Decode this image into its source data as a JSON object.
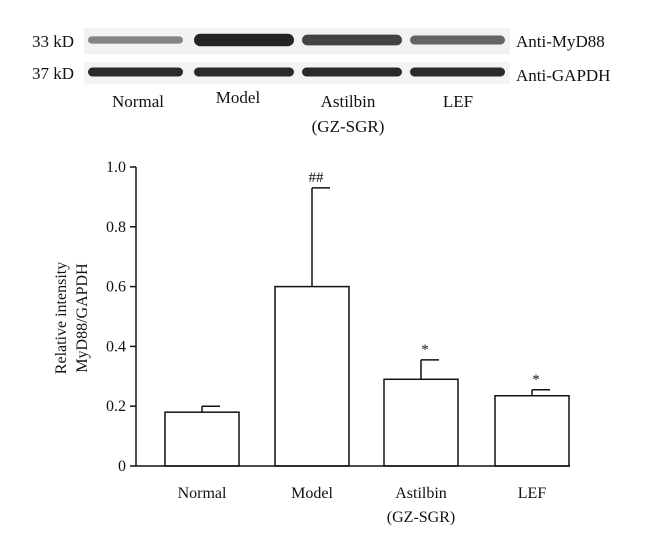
{
  "blot": {
    "rows": [
      {
        "size": "33 kD",
        "antibody": "Anti-MyD88",
        "intensity": [
          0.35,
          0.95,
          0.75,
          0.55
        ]
      },
      {
        "size": "37 kD",
        "antibody": "Anti-GAPDH",
        "intensity": [
          0.9,
          0.9,
          0.9,
          0.9
        ]
      }
    ],
    "lanes": [
      {
        "line1": "Normal",
        "line2": ""
      },
      {
        "line1": "Model",
        "line2": ""
      },
      {
        "line1": "Astilbin",
        "line2": "(GZ-SGR)"
      },
      {
        "line1": "LEF",
        "line2": ""
      }
    ],
    "band_color": "#1a1a1a"
  },
  "chart_data": {
    "type": "bar",
    "categories": [
      {
        "line1": "Normal",
        "line2": ""
      },
      {
        "line1": "Model",
        "line2": ""
      },
      {
        "line1": "Astilbin",
        "line2": "(GZ-SGR)"
      },
      {
        "line1": "LEF",
        "line2": ""
      }
    ],
    "values": [
      0.18,
      0.6,
      0.29,
      0.235
    ],
    "errors": [
      0.02,
      0.33,
      0.065,
      0.02
    ],
    "significance": [
      "",
      "##",
      "*",
      "*"
    ],
    "ylabel_line1": "Relative intensity",
    "ylabel_line2": "MyD88/GAPDH",
    "ylim": [
      0,
      1.0
    ],
    "yticks": [
      0,
      0.2,
      0.4,
      0.6,
      0.8,
      1.0
    ],
    "ytick_labels": [
      "0",
      "0.2",
      "0.4",
      "0.6",
      "0.8",
      "1.0"
    ],
    "grid": false,
    "bar_fill": "#ffffff",
    "bar_stroke": "#111111"
  }
}
